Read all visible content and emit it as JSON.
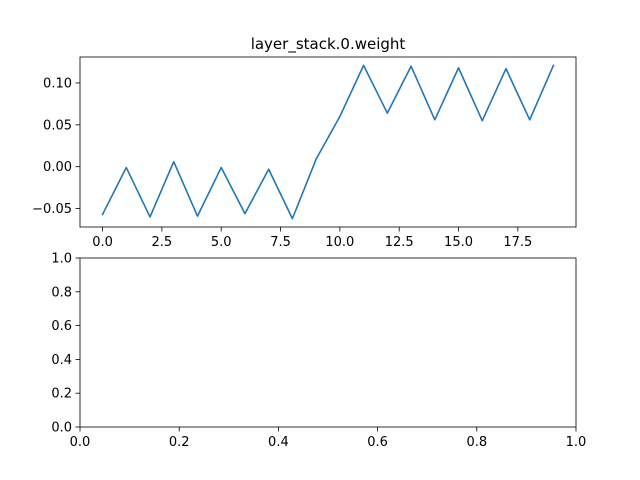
{
  "chart_data": [
    {
      "type": "line",
      "title": "layer_stack.0.weight",
      "xlabel": "",
      "ylabel": "",
      "xlim": [
        -0.95,
        19.95
      ],
      "ylim": [
        -0.072,
        0.131
      ],
      "xticks": [
        0.0,
        2.5,
        5.0,
        7.5,
        10.0,
        12.5,
        15.0,
        17.5
      ],
      "xtick_labels": [
        "0.0",
        "2.5",
        "5.0",
        "7.5",
        "10.0",
        "12.5",
        "15.0",
        "17.5"
      ],
      "yticks": [
        -0.05,
        0.0,
        0.05,
        0.1
      ],
      "ytick_labels": [
        "−0.05",
        "0.00",
        "0.05",
        "0.10"
      ],
      "grid": false,
      "series": [
        {
          "color": "#1f77b4",
          "x": [
            0,
            1,
            2,
            3,
            4,
            5,
            6,
            7,
            8,
            9,
            10,
            11,
            12,
            13,
            14,
            15,
            16,
            17,
            18,
            19
          ],
          "values": [
            -0.057,
            -0.001,
            -0.06,
            0.006,
            -0.059,
            -0.001,
            -0.056,
            -0.003,
            -0.062,
            0.009,
            0.06,
            0.121,
            0.064,
            0.12,
            0.056,
            0.118,
            0.055,
            0.117,
            0.056,
            0.121
          ]
        }
      ]
    },
    {
      "type": "line",
      "title": "",
      "xlabel": "",
      "ylabel": "",
      "xlim": [
        0,
        1
      ],
      "ylim": [
        0,
        1
      ],
      "xticks": [
        0.0,
        0.2,
        0.4,
        0.6,
        0.8,
        1.0
      ],
      "xtick_labels": [
        "0.0",
        "0.2",
        "0.4",
        "0.6",
        "0.8",
        "1.0"
      ],
      "yticks": [
        0.0,
        0.2,
        0.4,
        0.6,
        0.8,
        1.0
      ],
      "ytick_labels": [
        "0.0",
        "0.2",
        "0.4",
        "0.6",
        "0.8",
        "1.0"
      ],
      "grid": false,
      "series": []
    }
  ]
}
